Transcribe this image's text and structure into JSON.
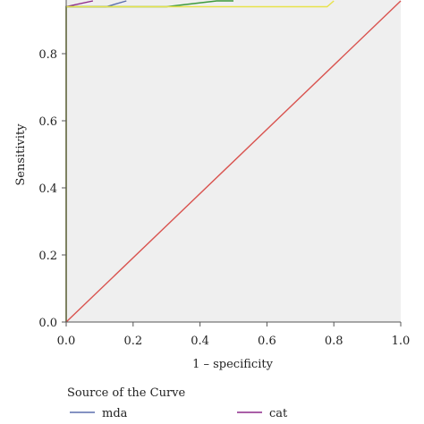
{
  "chart_data": {
    "type": "line",
    "xlabel": "1 – specificity",
    "ylabel": "Sensitivity",
    "xlim": [
      0,
      1
    ],
    "ylim": [
      0,
      0.95
    ],
    "x_ticks": [
      "0.0",
      "0.2",
      "0.4",
      "0.6",
      "0.8",
      "1.0"
    ],
    "y_ticks": [
      "0.0",
      "0.2",
      "0.4",
      "0.6",
      "0.8"
    ],
    "x_tick_values": [
      0,
      0.2,
      0.4,
      0.6,
      0.8,
      1.0
    ],
    "y_tick_values": [
      0,
      0.2,
      0.4,
      0.6,
      0.8
    ],
    "grid": false,
    "background": "#efefef",
    "legend_title": "Source of the Curve",
    "legend_position": "bottom",
    "series": [
      {
        "name": "mda",
        "color": "#5b6fae",
        "points": [
          [
            0,
            0
          ],
          [
            0,
            0.94
          ],
          [
            0.12,
            0.94
          ],
          [
            0.18,
            0.97
          ]
        ]
      },
      {
        "name": "cat",
        "color": "#8e2a8a",
        "points": [
          [
            0,
            0
          ],
          [
            0,
            0.94
          ],
          [
            0.08,
            0.96
          ]
        ]
      },
      {
        "color": "#3c9a3c",
        "points": [
          [
            0,
            0
          ],
          [
            0,
            0.94
          ],
          [
            0.3,
            0.94
          ],
          [
            0.45,
            0.96
          ],
          [
            0.5,
            0.97
          ]
        ]
      },
      {
        "color": "#e8e24a",
        "points": [
          [
            0,
            0
          ],
          [
            0,
            0.94
          ],
          [
            0.78,
            0.94
          ],
          [
            0.8,
            0.97
          ]
        ]
      },
      {
        "color": "#d9534f",
        "points": [
          [
            0,
            0
          ],
          [
            1,
            1
          ]
        ]
      }
    ],
    "legend_items": [
      {
        "label": "mda",
        "color": "#5b6fae"
      },
      {
        "label": "cat",
        "color": "#8e2a8a"
      }
    ]
  }
}
